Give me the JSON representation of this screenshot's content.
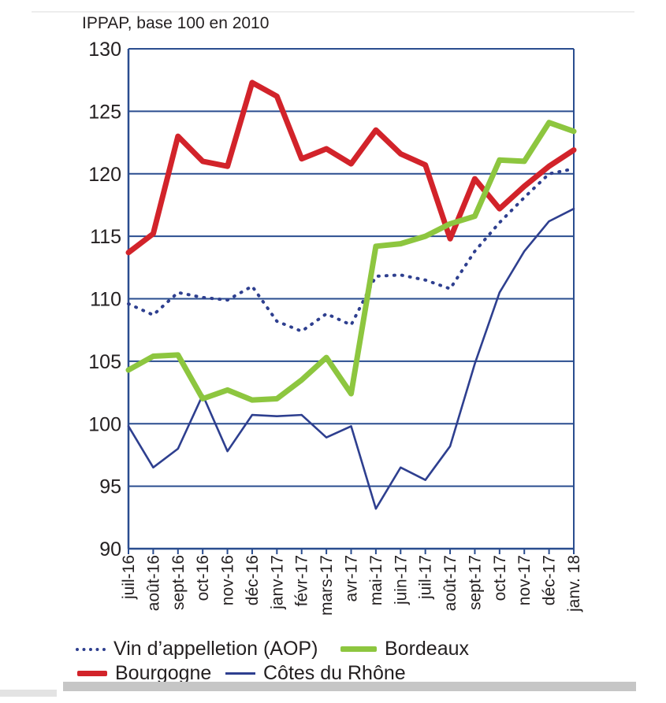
{
  "chart_data": {
    "type": "line",
    "title": "",
    "ylabel": "IPPAP, base 100 en 2010",
    "xlabel": "",
    "ylim": [
      90,
      130
    ],
    "yticks": [
      90,
      95,
      100,
      105,
      110,
      115,
      120,
      125,
      130
    ],
    "categories": [
      "juil-16",
      "août-16",
      "sept-16",
      "oct-16",
      "nov-16",
      "déc-16",
      "janv-17",
      "févr-17",
      "mars-17",
      "avr-17",
      "mai-17",
      "juin-17",
      "juil-17",
      "août-17",
      "sept-17",
      "oct-17",
      "nov-17",
      "déc-17",
      "janv. 18"
    ],
    "grid": true,
    "legend_position": "bottom",
    "series": [
      {
        "name": "Vin d’appelletion (AOP)",
        "color": "#2e3f8f",
        "style": "dotted",
        "values": [
          109.6,
          108.7,
          110.5,
          110.1,
          109.9,
          111.0,
          108.2,
          107.4,
          108.8,
          107.9,
          111.8,
          111.9,
          111.5,
          110.8,
          113.8,
          116.1,
          118.1,
          120.0,
          120.4
        ]
      },
      {
        "name": "Bordeaux",
        "color": "#8dc63f",
        "style": "thick",
        "values": [
          104.3,
          105.4,
          105.5,
          102.0,
          102.7,
          101.9,
          102.0,
          103.5,
          105.3,
          102.4,
          114.2,
          114.4,
          115.0,
          116.0,
          116.6,
          121.1,
          121.0,
          124.1,
          123.4
        ]
      },
      {
        "name": "Bourgogne",
        "color": "#d2232a",
        "style": "thick",
        "values": [
          113.7,
          115.2,
          123.0,
          121.0,
          120.6,
          127.3,
          126.2,
          121.2,
          122.0,
          120.8,
          123.5,
          121.6,
          120.7,
          114.8,
          119.6,
          117.2,
          119.0,
          120.6,
          121.9
        ]
      },
      {
        "name": "Côtes du Rhône",
        "color": "#2e3f8f",
        "style": "thin",
        "values": [
          99.8,
          96.5,
          98.0,
          102.3,
          97.8,
          100.7,
          100.6,
          100.7,
          98.9,
          99.8,
          93.2,
          96.5,
          95.5,
          98.2,
          104.8,
          110.5,
          113.8,
          116.2,
          117.2
        ]
      }
    ]
  },
  "legend": {
    "aop": "Vin d’appelletion (AOP)",
    "bordeaux": "Bordeaux",
    "bourgogne": "Bourgogne",
    "cotes": "Côtes du Rhône"
  }
}
